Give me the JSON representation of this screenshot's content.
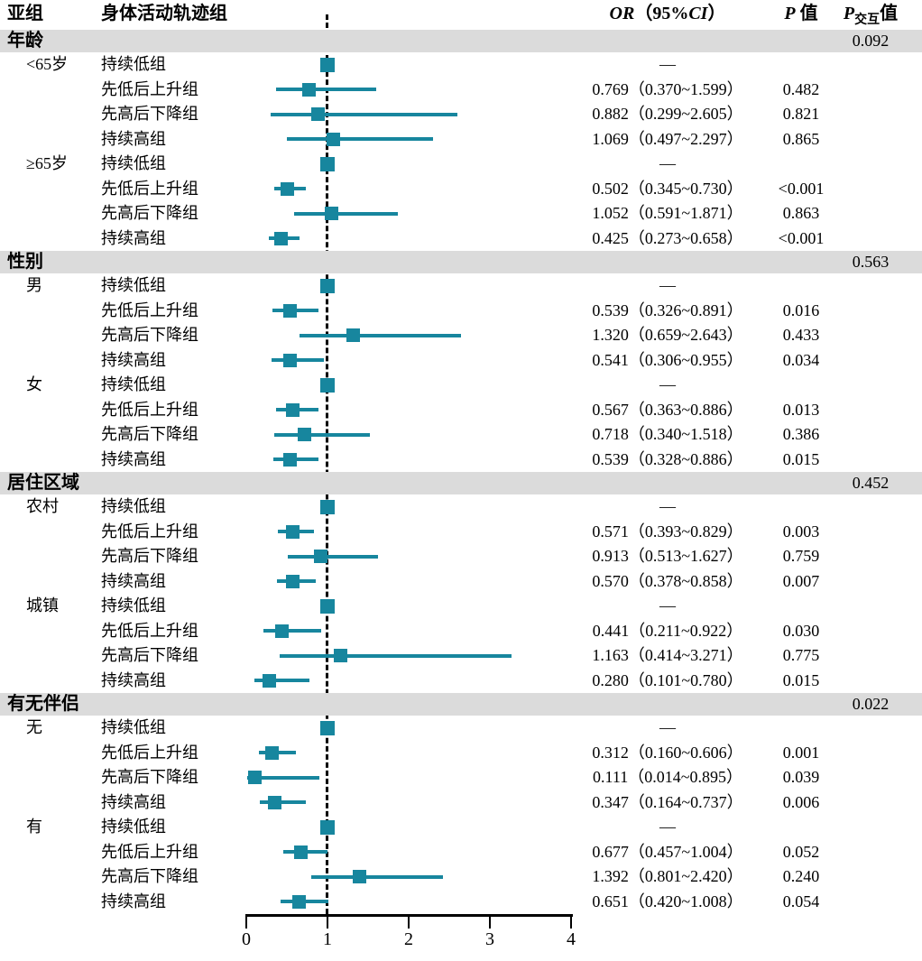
{
  "header": {
    "subgroup": "亚组",
    "trajectory_group": "身体活动轨迹组",
    "or_ci": {
      "or": "OR",
      "open": "（95%",
      "ci": "CI",
      "close": "）"
    },
    "p_value": {
      "p": "P",
      "suffix": "值"
    },
    "p_interaction": {
      "p": "P",
      "sub": "交互",
      "suffix": "值"
    }
  },
  "colors": {
    "marker": "#17869E",
    "band": "#DBDBDB",
    "text": "#000000",
    "axis": "#000000"
  },
  "chart_data": {
    "type": "scatter",
    "subtype": "forest-plot",
    "title": "",
    "xlabel": "",
    "xlim": [
      0,
      4
    ],
    "x_ticks": [
      0,
      1,
      2,
      3,
      4
    ],
    "reference_line": 1,
    "legend": "none",
    "grid": false,
    "sections": [
      {
        "title": "年龄",
        "p_interaction": "0.092",
        "rows": [
          {
            "subgroup": "<65岁",
            "trajectory": "持续低组",
            "or_text": "—",
            "p": "",
            "est": 1,
            "ref": true
          },
          {
            "subgroup": "",
            "trajectory": "先低后上升组",
            "or_text": "0.769（0.370~1.599）",
            "p": "0.482",
            "est": 0.769,
            "lo": 0.37,
            "hi": 1.599
          },
          {
            "subgroup": "",
            "trajectory": "先高后下降组",
            "or_text": "0.882（0.299~2.605）",
            "p": "0.821",
            "est": 0.882,
            "lo": 0.299,
            "hi": 2.605
          },
          {
            "subgroup": "",
            "trajectory": "持续高组",
            "or_text": "1.069（0.497~2.297）",
            "p": "0.865",
            "est": 1.069,
            "lo": 0.497,
            "hi": 2.297
          },
          {
            "subgroup": "≥65岁",
            "trajectory": "持续低组",
            "or_text": "—",
            "p": "",
            "est": 1,
            "ref": true
          },
          {
            "subgroup": "",
            "trajectory": "先低后上升组",
            "or_text": "0.502（0.345~0.730）",
            "p": "<0.001",
            "est": 0.502,
            "lo": 0.345,
            "hi": 0.73
          },
          {
            "subgroup": "",
            "trajectory": "先高后下降组",
            "or_text": "1.052（0.591~1.871）",
            "p": "0.863",
            "est": 1.052,
            "lo": 0.591,
            "hi": 1.871
          },
          {
            "subgroup": "",
            "trajectory": "持续高组",
            "or_text": "0.425（0.273~0.658）",
            "p": "<0.001",
            "est": 0.425,
            "lo": 0.273,
            "hi": 0.658
          }
        ]
      },
      {
        "title": "性别",
        "p_interaction": "0.563",
        "rows": [
          {
            "subgroup": "男",
            "trajectory": "持续低组",
            "or_text": "—",
            "p": "",
            "est": 1,
            "ref": true
          },
          {
            "subgroup": "",
            "trajectory": "先低后上升组",
            "or_text": "0.539（0.326~0.891）",
            "p": "0.016",
            "est": 0.539,
            "lo": 0.326,
            "hi": 0.891
          },
          {
            "subgroup": "",
            "trajectory": "先高后下降组",
            "or_text": "1.320（0.659~2.643）",
            "p": "0.433",
            "est": 1.32,
            "lo": 0.659,
            "hi": 2.643
          },
          {
            "subgroup": "",
            "trajectory": "持续高组",
            "or_text": "0.541（0.306~0.955）",
            "p": "0.034",
            "est": 0.541,
            "lo": 0.306,
            "hi": 0.955
          },
          {
            "subgroup": "女",
            "trajectory": "持续低组",
            "or_text": "—",
            "p": "",
            "est": 1,
            "ref": true
          },
          {
            "subgroup": "",
            "trajectory": "先低后上升组",
            "or_text": "0.567（0.363~0.886）",
            "p": "0.013",
            "est": 0.567,
            "lo": 0.363,
            "hi": 0.886
          },
          {
            "subgroup": "",
            "trajectory": "先高后下降组",
            "or_text": "0.718（0.340~1.518）",
            "p": "0.386",
            "est": 0.718,
            "lo": 0.34,
            "hi": 1.518
          },
          {
            "subgroup": "",
            "trajectory": "持续高组",
            "or_text": "0.539（0.328~0.886）",
            "p": "0.015",
            "est": 0.539,
            "lo": 0.328,
            "hi": 0.886
          }
        ]
      },
      {
        "title": "居住区域",
        "p_interaction": "0.452",
        "rows": [
          {
            "subgroup": "农村",
            "trajectory": "持续低组",
            "or_text": "—",
            "p": "",
            "est": 1,
            "ref": true
          },
          {
            "subgroup": "",
            "trajectory": "先低后上升组",
            "or_text": "0.571（0.393~0.829）",
            "p": "0.003",
            "est": 0.571,
            "lo": 0.393,
            "hi": 0.829
          },
          {
            "subgroup": "",
            "trajectory": "先高后下降组",
            "or_text": "0.913（0.513~1.627）",
            "p": "0.759",
            "est": 0.913,
            "lo": 0.513,
            "hi": 1.627
          },
          {
            "subgroup": "",
            "trajectory": "持续高组",
            "or_text": "0.570（0.378~0.858）",
            "p": "0.007",
            "est": 0.57,
            "lo": 0.378,
            "hi": 0.858
          },
          {
            "subgroup": "城镇",
            "trajectory": "持续低组",
            "or_text": "—",
            "p": "",
            "est": 1,
            "ref": true
          },
          {
            "subgroup": "",
            "trajectory": "先低后上升组",
            "or_text": "0.441（0.211~0.922）",
            "p": "0.030",
            "est": 0.441,
            "lo": 0.211,
            "hi": 0.922
          },
          {
            "subgroup": "",
            "trajectory": "先高后下降组",
            "or_text": "1.163（0.414~3.271）",
            "p": "0.775",
            "est": 1.163,
            "lo": 0.414,
            "hi": 3.271
          },
          {
            "subgroup": "",
            "trajectory": "持续高组",
            "or_text": "0.280（0.101~0.780）",
            "p": "0.015",
            "est": 0.28,
            "lo": 0.101,
            "hi": 0.78
          }
        ]
      },
      {
        "title": "有无伴侣",
        "p_interaction": "0.022",
        "rows": [
          {
            "subgroup": "无",
            "trajectory": "持续低组",
            "or_text": "—",
            "p": "",
            "est": 1,
            "ref": true
          },
          {
            "subgroup": "",
            "trajectory": "先低后上升组",
            "or_text": "0.312（0.160~0.606）",
            "p": "0.001",
            "est": 0.312,
            "lo": 0.16,
            "hi": 0.606
          },
          {
            "subgroup": "",
            "trajectory": "先高后下降组",
            "or_text": "0.111（0.014~0.895）",
            "p": "0.039",
            "est": 0.111,
            "lo": 0.014,
            "hi": 0.895
          },
          {
            "subgroup": "",
            "trajectory": "持续高组",
            "or_text": "0.347（0.164~0.737）",
            "p": "0.006",
            "est": 0.347,
            "lo": 0.164,
            "hi": 0.737
          },
          {
            "subgroup": "有",
            "trajectory": "持续低组",
            "or_text": "—",
            "p": "",
            "est": 1,
            "ref": true
          },
          {
            "subgroup": "",
            "trajectory": "先低后上升组",
            "or_text": "0.677（0.457~1.004）",
            "p": "0.052",
            "est": 0.677,
            "lo": 0.457,
            "hi": 1.004
          },
          {
            "subgroup": "",
            "trajectory": "先高后下降组",
            "or_text": "1.392（0.801~2.420）",
            "p": "0.240",
            "est": 1.392,
            "lo": 0.801,
            "hi": 2.42
          },
          {
            "subgroup": "",
            "trajectory": "持续高组",
            "or_text": "0.651（0.420~1.008）",
            "p": "0.054",
            "est": 0.651,
            "lo": 0.42,
            "hi": 1.008
          }
        ]
      }
    ]
  }
}
